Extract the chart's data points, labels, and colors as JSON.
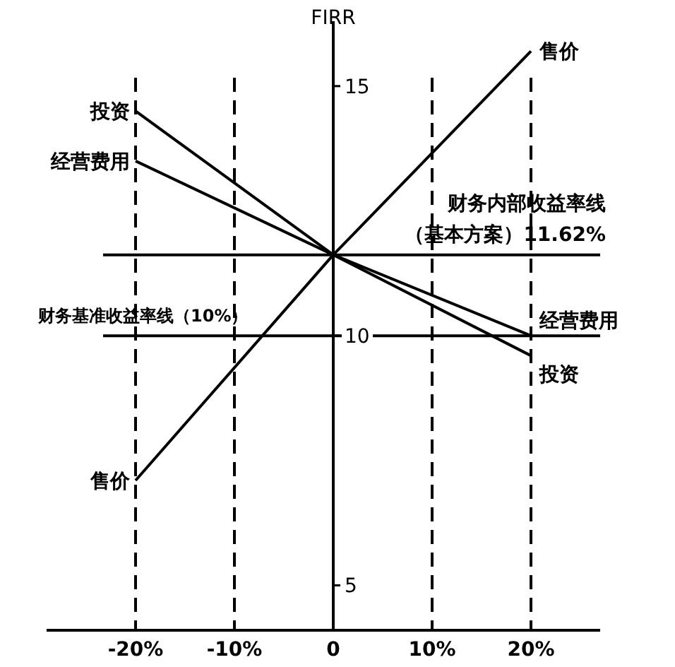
{
  "chart_data": {
    "type": "line",
    "ylabel": "FIRR",
    "x": [
      -20,
      0,
      20
    ],
    "series": [
      {
        "name": "售价",
        "color": "#000000",
        "values": [
          7.1,
          11.62,
          15.7
        ]
      },
      {
        "name": "投资",
        "color": "#000000",
        "values": [
          14.5,
          11.62,
          9.6
        ]
      },
      {
        "name": "经营费用",
        "color": "#000000",
        "values": [
          13.5,
          11.62,
          10.0
        ]
      }
    ],
    "xlim": [
      -29,
      27
    ],
    "ylim": [
      4.1,
      16.3
    ],
    "xticks": [
      {
        "value": -20,
        "label": "-20%"
      },
      {
        "value": -10,
        "label": "-10%"
      },
      0,
      {
        "value": 10,
        "label": "10%"
      },
      {
        "value": 20,
        "label": "20%"
      }
    ],
    "yticks": [
      5,
      10,
      15
    ],
    "ref_lines": [
      {
        "axis": "y",
        "value": 11.62,
        "label": "财务内部收益率线（基本方案）11.62%"
      },
      {
        "axis": "y",
        "value": 10,
        "label": "财务基准收益率线（10%）"
      },
      {
        "axis": "x",
        "value": -20,
        "line_style": "dashed"
      },
      {
        "axis": "x",
        "value": -10,
        "line_style": "dashed"
      },
      {
        "axis": "x",
        "value": 10,
        "line_style": "dashed"
      },
      {
        "axis": "x",
        "value": 20,
        "line_style": "dashed"
      }
    ],
    "grid": false,
    "legend": false,
    "marker": "none",
    "line_style": "solid"
  }
}
